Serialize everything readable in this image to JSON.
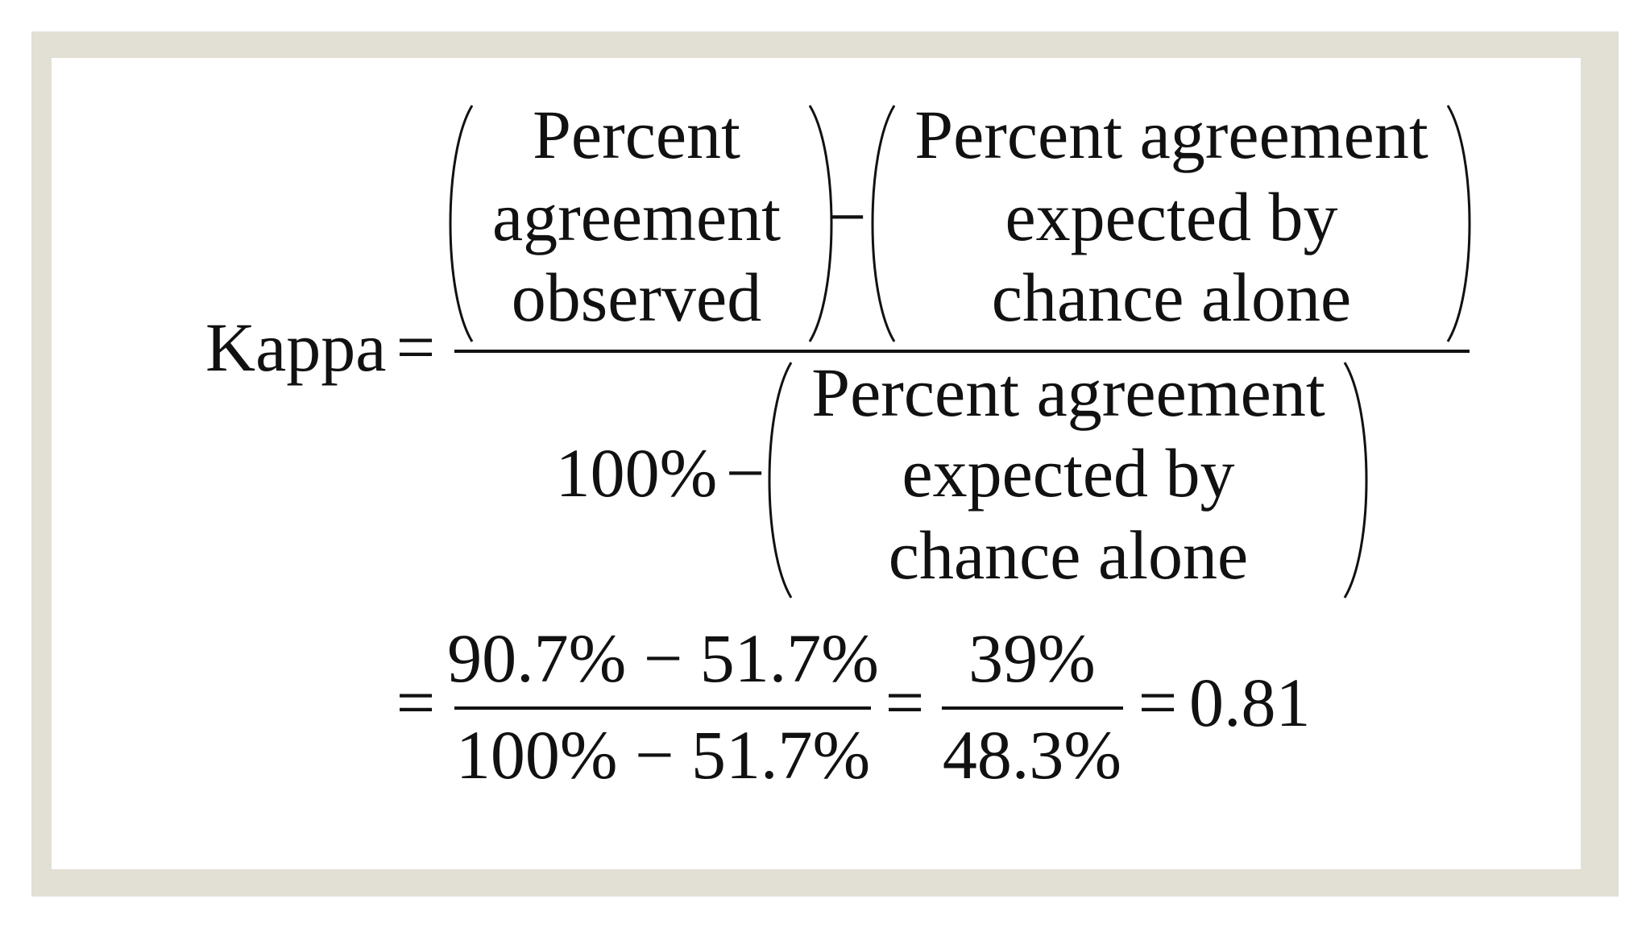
{
  "formula": {
    "lhs": "Kappa",
    "equals": "=",
    "numerator": {
      "observed": [
        "Percent",
        "agreement",
        "observed"
      ],
      "minus": "−",
      "expected": [
        "Percent agreement",
        "expected by",
        "chance alone"
      ]
    },
    "denominator": {
      "whole": "100%",
      "minus": "−",
      "expected": [
        "Percent agreement",
        "expected by",
        "chance alone"
      ]
    }
  },
  "calculation": {
    "equals_1": "=",
    "step_1": {
      "numerator": "90.7% − 51.7%",
      "denominator": "100% − 51.7%"
    },
    "equals_2": "=",
    "step_2": {
      "numerator": "39%",
      "denominator": "48.3%"
    },
    "equals_3": "=",
    "result": "0.81"
  }
}
